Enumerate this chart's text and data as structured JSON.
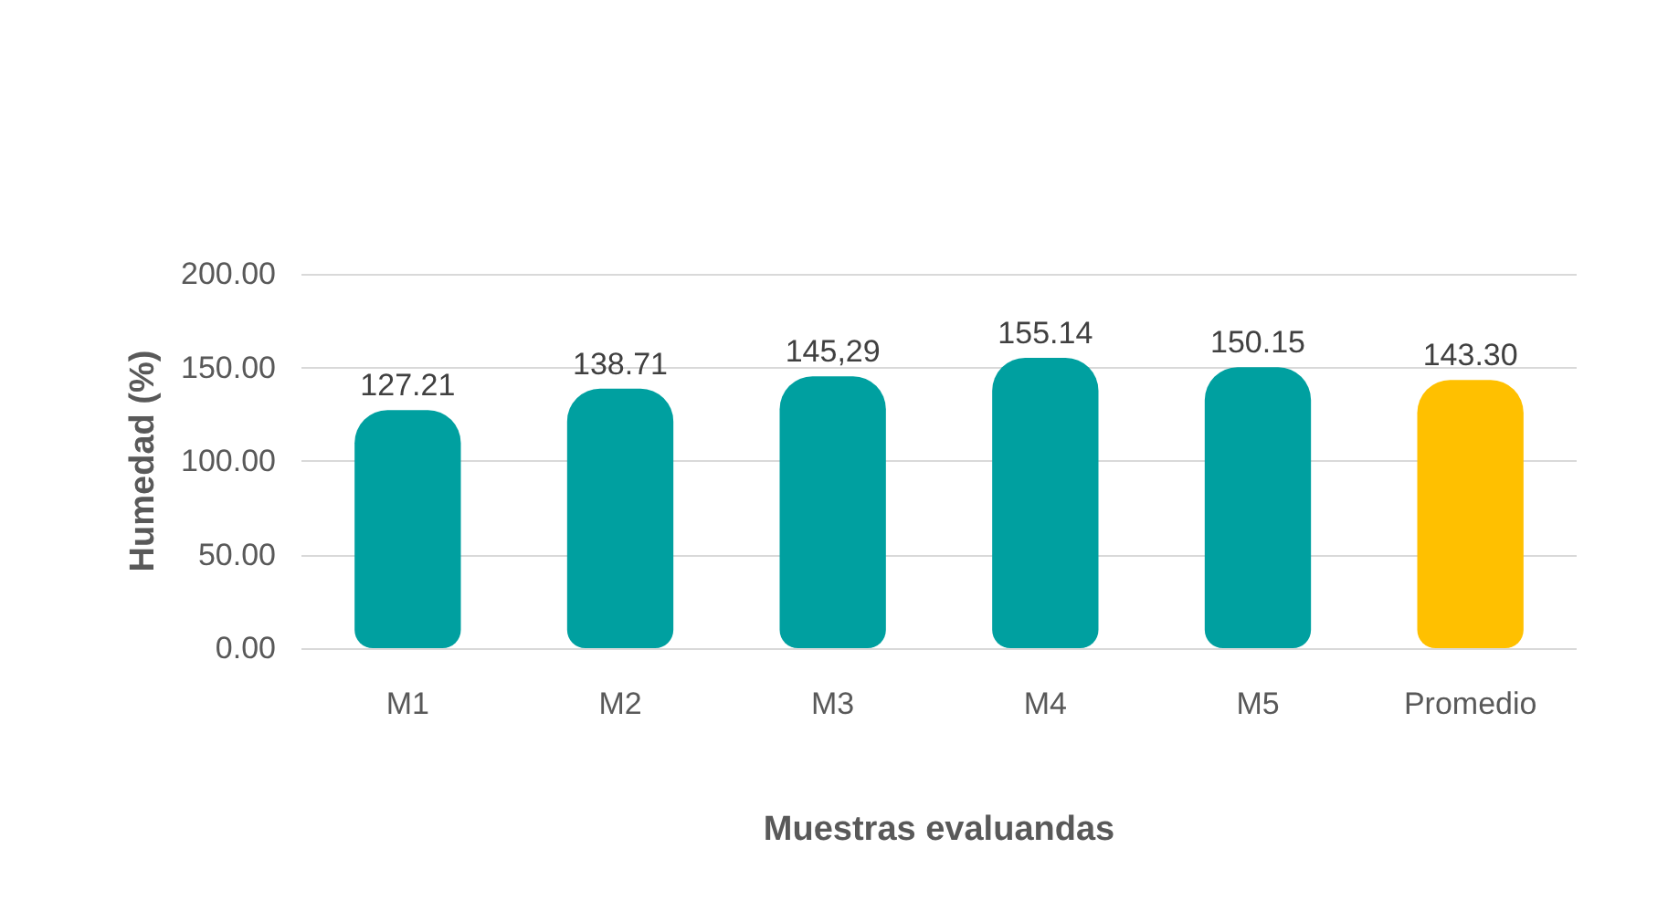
{
  "chart_data": {
    "type": "bar",
    "xlabel": "Muestras evaluandas",
    "ylabel": "Humedad (%)",
    "categories": [
      "M1",
      "M2",
      "M3",
      "M4",
      "M5",
      "Promedio"
    ],
    "values": [
      127.21,
      138.71,
      145.29,
      155.14,
      150.15,
      143.3
    ],
    "value_labels": [
      "127.21",
      "138.71",
      "145,29",
      "155.14",
      "150.15",
      "143.30"
    ],
    "colors": [
      "#00a0a0",
      "#00a0a0",
      "#00a0a0",
      "#00a0a0",
      "#00a0a0",
      "#ffc000"
    ],
    "ylim": [
      0,
      200
    ],
    "yticks": [
      {
        "value": 0,
        "label": "0.00"
      },
      {
        "value": 50,
        "label": "50.00"
      },
      {
        "value": 100,
        "label": "100.00"
      },
      {
        "value": 150,
        "label": "150.00"
      },
      {
        "value": 200,
        "label": "200.00"
      }
    ],
    "grid": "y"
  }
}
